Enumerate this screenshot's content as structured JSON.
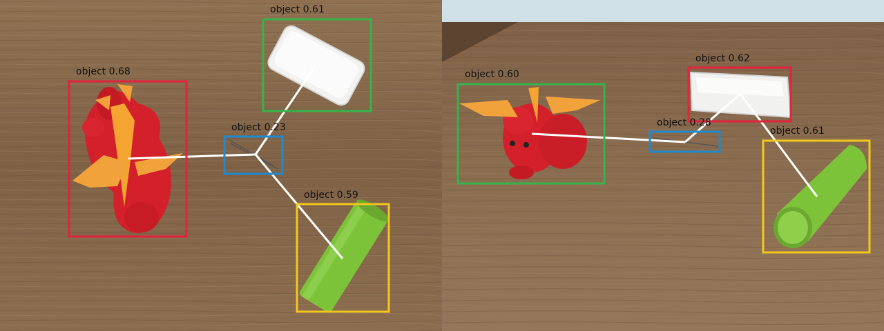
{
  "panels": [
    {
      "detections": [
        {
          "label": "object 0.68",
          "color": "#e3223c"
        },
        {
          "label": "object 0.61",
          "color": "#36b34a"
        },
        {
          "label": "object 0.23",
          "color": "#1f8ad0"
        },
        {
          "label": "object 0.59",
          "color": "#f2c81c"
        }
      ]
    },
    {
      "detections": [
        {
          "label": "object 0.60",
          "color": "#36b34a"
        },
        {
          "label": "object 0.62",
          "color": "#e3223c"
        },
        {
          "label": "object 0.28",
          "color": "#1f8ad0"
        },
        {
          "label": "object 0.61",
          "color": "#f2c81c"
        }
      ]
    }
  ]
}
